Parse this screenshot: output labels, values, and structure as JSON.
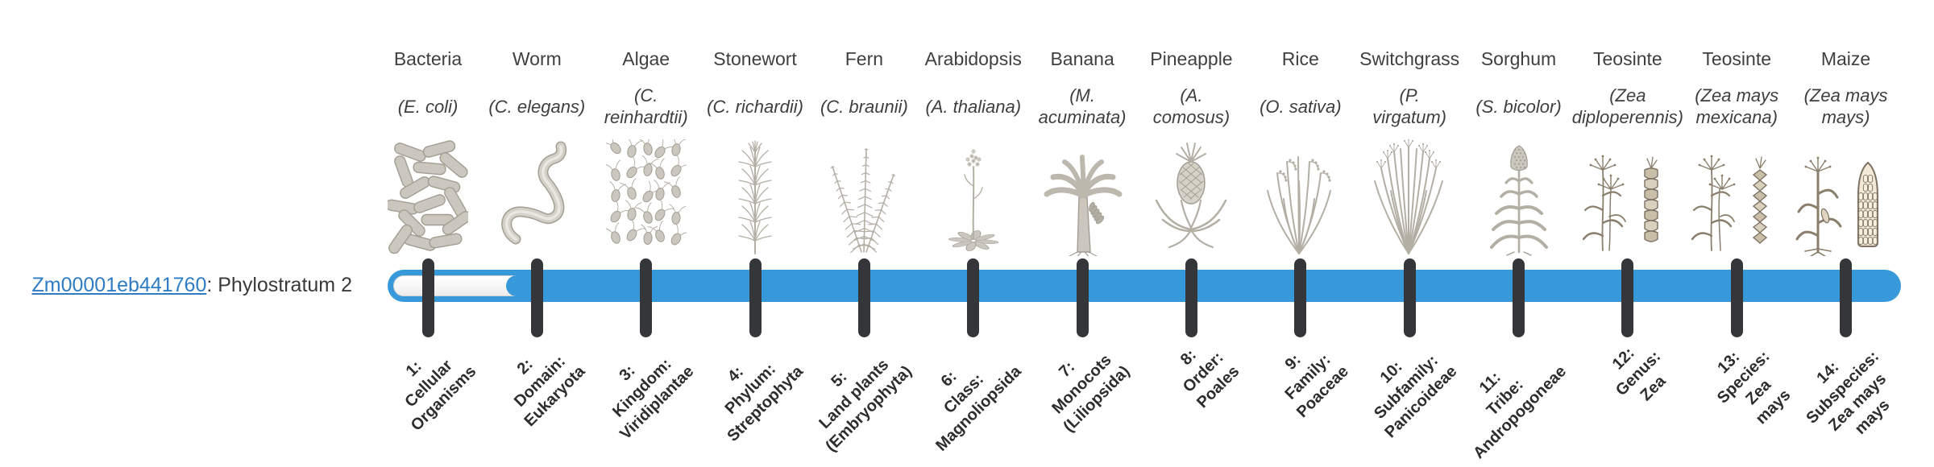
{
  "gene": {
    "id": "Zm00001eb441760",
    "label_suffix": ": Phylostratum 2",
    "phylostratum": 2
  },
  "colors": {
    "bar_blue": "#3899da",
    "tick_dark": "#35363a",
    "link_blue": "#2e7cc3",
    "text_dark": "#3f3f3f",
    "illustration_gray": "#b4afa5",
    "illustration_brown": "#8a7e6c"
  },
  "taxa": [
    {
      "name": "Bacteria",
      "sci": "(E. coli)",
      "icon": "bacteria-illustration",
      "stratum_label": "1:\nCellular\nOrganisms"
    },
    {
      "name": "Worm",
      "sci": "(C. elegans)",
      "icon": "worm-illustration",
      "stratum_label": "2:\nDomain:\nEukaryota"
    },
    {
      "name": "Algae",
      "sci": "(C.\nreinhardtii)",
      "icon": "algae-illustration",
      "stratum_label": "3:\nKingdom:\nViridiplantae"
    },
    {
      "name": "Stonewort",
      "sci": "(C. richardii)",
      "icon": "stonewort-illustration",
      "stratum_label": "4:\nPhylum:\nStreptophyta"
    },
    {
      "name": "Fern",
      "sci": "(C. braunii)",
      "icon": "fern-illustration",
      "stratum_label": "5:\nLand plants\n(Embryophyta)"
    },
    {
      "name": "Arabidopsis",
      "sci": "(A. thaliana)",
      "icon": "arabidopsis-illustration",
      "stratum_label": "6:\nClass:\nMagnoliopsida"
    },
    {
      "name": "Banana",
      "sci": "(M.\nacuminata)",
      "icon": "banana-illustration",
      "stratum_label": "7:\nMonocots\n(Liliopsida)"
    },
    {
      "name": "Pineapple",
      "sci": "(A.\ncomosus)",
      "icon": "pineapple-illustration",
      "stratum_label": "8:\nOrder:\nPoales"
    },
    {
      "name": "Rice",
      "sci": "(O. sativa)",
      "icon": "rice-illustration",
      "stratum_label": "9:\nFamily:\nPoaceae"
    },
    {
      "name": "Switchgrass",
      "sci": "(P.\nvirgatum)",
      "icon": "switchgrass-illustration",
      "stratum_label": "10:\nSubfamily:\nPanicoideae"
    },
    {
      "name": "Sorghum",
      "sci": "(S. bicolor)",
      "icon": "sorghum-illustration",
      "stratum_label": "11:\nTribe:\nAndropogoneae"
    },
    {
      "name": "Teosinte",
      "sci": "(Zea\ndiploperennis)",
      "icon": "teosinte-diploperennis-illustration",
      "stratum_label": "12:\nGenus:\nZea"
    },
    {
      "name": "Teosinte",
      "sci": "(Zea mays\nmexicana)",
      "icon": "teosinte-mexicana-illustration",
      "stratum_label": "13:\nSpecies:\nZea\nmays"
    },
    {
      "name": "Maize",
      "sci": "(Zea mays\nmays)",
      "icon": "maize-illustration",
      "stratum_label": "14:\nSubspecies:\nZea mays\nmays"
    }
  ]
}
